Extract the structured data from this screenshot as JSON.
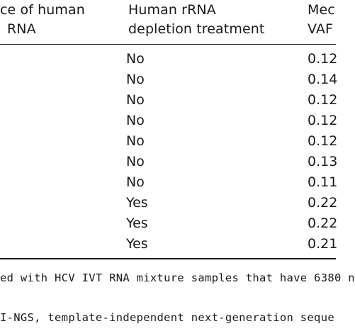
{
  "table": {
    "headers": {
      "col1_line1": "ce of human",
      "col1_line2": "RNA",
      "col2_line1": "Human rRNA",
      "col2_line2": "depletion treatment",
      "col3_line1": "Mec",
      "col3_line2": "VAF"
    },
    "rows": [
      {
        "treatment": "No",
        "vaf": "0.12"
      },
      {
        "treatment": "No",
        "vaf": "0.14"
      },
      {
        "treatment": "No",
        "vaf": "0.12"
      },
      {
        "treatment": "No",
        "vaf": "0.12"
      },
      {
        "treatment": "No",
        "vaf": "0.12"
      },
      {
        "treatment": "No",
        "vaf": "0.13"
      },
      {
        "treatment": "No",
        "vaf": "0.11"
      },
      {
        "treatment": "Yes",
        "vaf": "0.22"
      },
      {
        "treatment": "Yes",
        "vaf": "0.22"
      },
      {
        "treatment": "Yes",
        "vaf": "0.21"
      }
    ]
  },
  "footnotes": {
    "line1": "ed with HCV IVT RNA mixture samples that have 6380 n",
    "line2": "I-NGS, template-independent next-generation seque"
  }
}
